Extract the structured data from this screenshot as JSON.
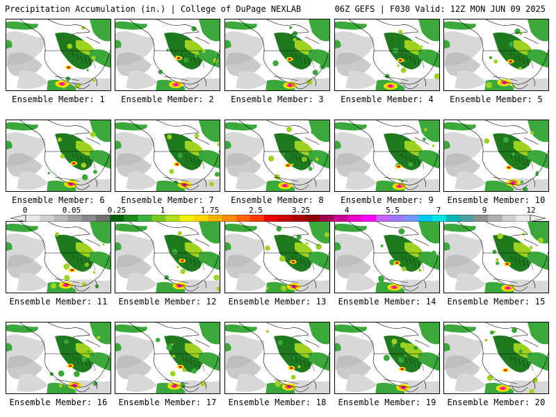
{
  "header": {
    "left": "Precipitation Accumulation (in.) | College of DuPage NEXLAB",
    "right": "06Z GEFS | F030 Valid: 12Z MON JUN 09 2025"
  },
  "members": [
    {
      "caption": "Ensemble Member: 1"
    },
    {
      "caption": "Ensemble Member: 2"
    },
    {
      "caption": "Ensemble Member: 3"
    },
    {
      "caption": "Ensemble Member: 4"
    },
    {
      "caption": "Ensemble Member: 5"
    },
    {
      "caption": "Ensemble Member: 6"
    },
    {
      "caption": "Ensemble Member: 7"
    },
    {
      "caption": "Ensemble Member: 8"
    },
    {
      "caption": "Ensemble Member: 9"
    },
    {
      "caption": "Ensemble Member: 10"
    },
    {
      "caption": "Ensemble Member: 11"
    },
    {
      "caption": "Ensemble Member: 12"
    },
    {
      "caption": "Ensemble Member: 13"
    },
    {
      "caption": "Ensemble Member: 14"
    },
    {
      "caption": "Ensemble Member: 15"
    },
    {
      "caption": "Ensemble Member: 16"
    },
    {
      "caption": "Ensemble Member: 17"
    },
    {
      "caption": "Ensemble Member: 18"
    },
    {
      "caption": "Ensemble Member: 19"
    },
    {
      "caption": "Ensemble Member: 20"
    }
  ],
  "colorbar": {
    "labels": [
      "0",
      "0.05",
      "0.25",
      "1",
      "1.75",
      "2.5",
      "3.25",
      "4",
      "5.5",
      "7",
      "9",
      "12"
    ],
    "colors": [
      "#e8e8e8",
      "#d0d0d0",
      "#b8b8b8",
      "#a0a0a0",
      "#888888",
      "#707070",
      "#0a5f0a",
      "#1e8b1e",
      "#3cb43c",
      "#78c81e",
      "#b4dc1e",
      "#f0f000",
      "#ffd700",
      "#ffb400",
      "#ff8c00",
      "#ff6400",
      "#ff3c00",
      "#e60000",
      "#c80000",
      "#aa0000",
      "#8c0000",
      "#a00050",
      "#c80096",
      "#e600c8",
      "#ff00ff",
      "#c864ff",
      "#a078ff",
      "#7896ff",
      "#00c8ff",
      "#00e6e6",
      "#00b4b4",
      "#50a0a0",
      "#909090",
      "#b0b0b0",
      "#d0d0d0",
      "#e8e8e8"
    ]
  },
  "map": {
    "ocean": "#ffffff",
    "gray_light": "#d8d8d8",
    "gray_mid": "#b4b4b4",
    "green_dark": "#1f7a1f",
    "green": "#3aa83a",
    "lime": "#9ed21e",
    "yellow": "#f0e600",
    "orange": "#ff8c00",
    "red": "#e60000",
    "magenta": "#e600c8"
  }
}
